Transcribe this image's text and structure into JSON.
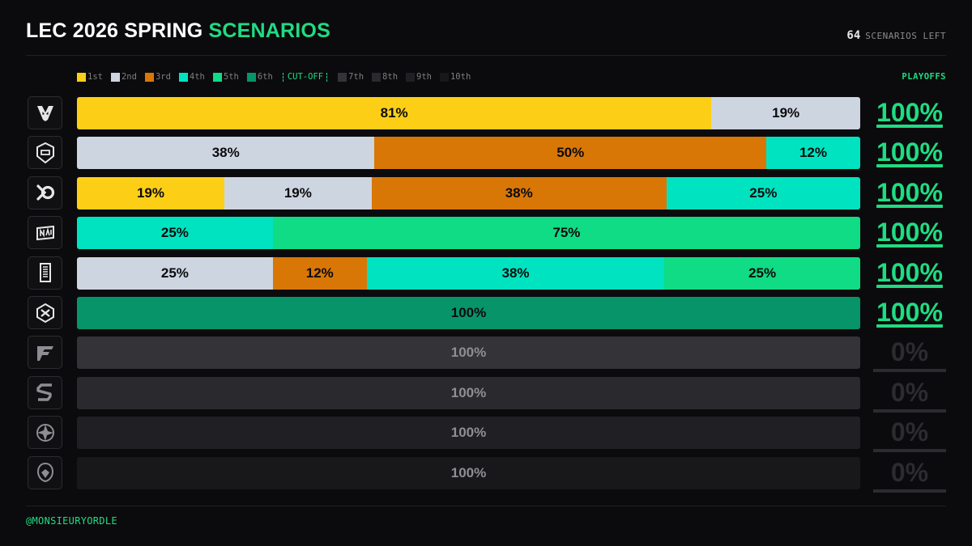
{
  "header": {
    "title_main": "LEC 2026 SPRING",
    "title_accent": "SCENARIOS",
    "scenarios_count": "64",
    "scenarios_label": "SCENARIOS LEFT"
  },
  "legend": {
    "cutoff_label": "CUT-OFF",
    "playoffs_label": "PLAYOFFS"
  },
  "footer": {
    "handle": "@MONSIEURYORDLE"
  },
  "colors": {
    "accent": "#1fdc82",
    "1st": "#fccf16",
    "2nd": "#cdd5e1",
    "3rd": "#d97706",
    "4th": "#00e3c0",
    "5th": "#0fdc84",
    "6th": "#079468",
    "7th": "#333338",
    "8th": "#2a2a2e",
    "9th": "#202024",
    "10th": "#18181b"
  },
  "chart_data": {
    "type": "bar",
    "stacked": true,
    "orientation": "horizontal",
    "title": "LEC 2026 SPRING SCENARIOS",
    "places": [
      "1st",
      "2nd",
      "3rd",
      "4th",
      "5th",
      "6th",
      "7th",
      "8th",
      "9th",
      "10th"
    ],
    "cutoff_after": "6th",
    "legend_position": "top-left",
    "teams": [
      {
        "logo": "vitality-logo-icon",
        "segments": [
          {
            "place": "1st",
            "value": 81
          },
          {
            "place": "2nd",
            "value": 19
          }
        ],
        "playoffs": "100%"
      },
      {
        "logo": "g2-logo-icon",
        "segments": [
          {
            "place": "2nd",
            "value": 38
          },
          {
            "place": "3rd",
            "value": 50
          },
          {
            "place": "4th",
            "value": 12
          }
        ],
        "playoffs": "100%"
      },
      {
        "logo": "karmine-corp-logo-icon",
        "segments": [
          {
            "place": "1st",
            "value": 19
          },
          {
            "place": "2nd",
            "value": 19
          },
          {
            "place": "3rd",
            "value": 38
          },
          {
            "place": "4th",
            "value": 25
          }
        ],
        "playoffs": "100%"
      },
      {
        "logo": "navi-logo-icon",
        "segments": [
          {
            "place": "4th",
            "value": 25
          },
          {
            "place": "5th",
            "value": 75
          }
        ],
        "playoffs": "100%"
      },
      {
        "logo": "movistar-koi-logo-icon",
        "segments": [
          {
            "place": "2nd",
            "value": 25
          },
          {
            "place": "3rd",
            "value": 12
          },
          {
            "place": "4th",
            "value": 38
          },
          {
            "place": "5th",
            "value": 25
          }
        ],
        "playoffs": "100%"
      },
      {
        "logo": "giantx-logo-icon",
        "segments": [
          {
            "place": "6th",
            "value": 100
          }
        ],
        "playoffs": "100%"
      },
      {
        "logo": "fnatic-logo-icon",
        "segments": [
          {
            "place": "7th",
            "value": 100
          }
        ],
        "playoffs": "0%"
      },
      {
        "logo": "sk-gaming-logo-icon",
        "segments": [
          {
            "place": "8th",
            "value": 100
          }
        ],
        "playoffs": "0%"
      },
      {
        "logo": "team-heretics-logo-icon",
        "segments": [
          {
            "place": "9th",
            "value": 100
          }
        ],
        "playoffs": "0%"
      },
      {
        "logo": "shifters-logo-icon",
        "segments": [
          {
            "place": "10th",
            "value": 100
          }
        ],
        "playoffs": "0%"
      }
    ]
  }
}
